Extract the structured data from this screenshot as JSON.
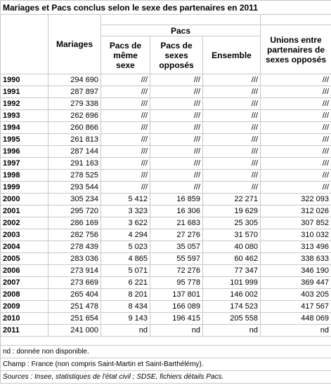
{
  "title": "Mariages et Pacs conclus selon le sexe des partenaires en 2011",
  "table": {
    "headers": {
      "mariages": "Mariages",
      "pacs": "Pacs",
      "pacs_meme_sexe": "Pacs de même sexe",
      "pacs_sexes_opposes": "Pacs de sexes opposés",
      "ensemble": "Ensemble",
      "unions": "Unions entre partenaires de sexes opposés"
    },
    "rows": [
      [
        "1990",
        "294 690",
        "///",
        "///",
        "///",
        "///"
      ],
      [
        "1991",
        "287 897",
        "///",
        "///",
        "///",
        "///"
      ],
      [
        "1992",
        "279 338",
        "///",
        "///",
        "///",
        "///"
      ],
      [
        "1993",
        "262 696",
        "///",
        "///",
        "///",
        "///"
      ],
      [
        "1994",
        "260 866",
        "///",
        "///",
        "///",
        "///"
      ],
      [
        "1995",
        "261 813",
        "///",
        "///",
        "///",
        "///"
      ],
      [
        "1996",
        "287 144",
        "///",
        "///",
        "///",
        "///"
      ],
      [
        "1997",
        "291 163",
        "///",
        "///",
        "///",
        "///"
      ],
      [
        "1998",
        "278 525",
        "///",
        "///",
        "///",
        "///"
      ],
      [
        "1999",
        "293 544",
        "///",
        "///",
        "///",
        "///"
      ],
      [
        "2000",
        "305 234",
        "5 412",
        "16 859",
        "22 271",
        "322 093"
      ],
      [
        "2001",
        "295 720",
        "3 323",
        "16 306",
        "19 629",
        "312 026"
      ],
      [
        "2002",
        "286 169",
        "3 622",
        "21 683",
        "25 305",
        "307 852"
      ],
      [
        "2003",
        "282 756",
        "4 294",
        "27 276",
        "31 570",
        "310 032"
      ],
      [
        "2004",
        "278 439",
        "5 023",
        "35 057",
        "40 080",
        "313 496"
      ],
      [
        "2005",
        "283 036",
        "4 865",
        "55 597",
        "60 462",
        "338 633"
      ],
      [
        "2006",
        "273 914",
        "5 071",
        "72 276",
        "77 347",
        "346 190"
      ],
      [
        "2007",
        "273 669",
        "6 221",
        "95 778",
        "101 999",
        "369 447"
      ],
      [
        "2008",
        "265 404",
        "8 201",
        "137 801",
        "146 002",
        "403 205"
      ],
      [
        "2009",
        "251 478",
        "8 434",
        "166 089",
        "174 523",
        "417 567"
      ],
      [
        "2010",
        "251 654",
        "9 143",
        "196 415",
        "205 558",
        "448 069"
      ],
      [
        "2011",
        "241 000",
        "nd",
        "nd",
        "nd",
        "nd"
      ]
    ]
  },
  "notes": [
    "nd : donnée non disponible.",
    "Champ : France (non compris Saint-Martin et Saint-Barthélémy).",
    "Sources : Insee, statistiques de l'état civil ; SDSE, fichiers détails Pacs."
  ]
}
